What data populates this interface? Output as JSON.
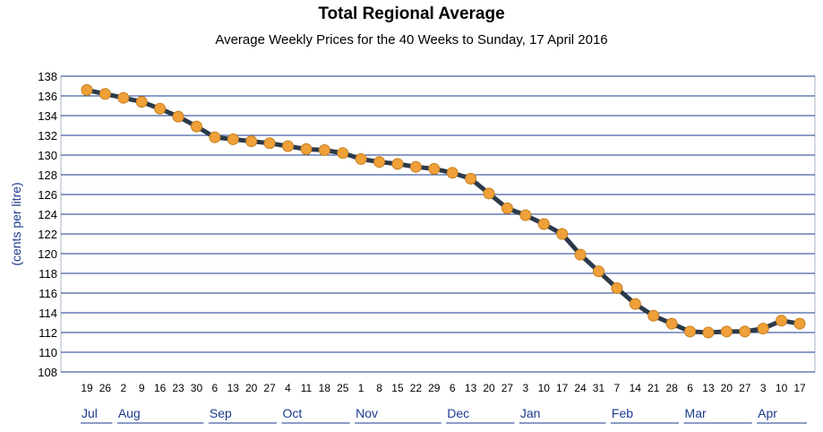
{
  "chart_data": {
    "type": "line",
    "title": "Total Regional Average",
    "subtitle": "Average Weekly Prices for the 40 Weeks to Sunday, 17 April 2016",
    "ylabel": "(cents per litre)",
    "ylim": [
      108,
      138
    ],
    "yticks": [
      108,
      110,
      112,
      114,
      116,
      118,
      120,
      122,
      124,
      126,
      128,
      130,
      132,
      134,
      136,
      138
    ],
    "grid": true,
    "x_labels": [
      "19",
      "26",
      "2",
      "9",
      "16",
      "23",
      "30",
      "6",
      "13",
      "20",
      "27",
      "4",
      "11",
      "18",
      "25",
      "1",
      "8",
      "15",
      "22",
      "29",
      "6",
      "13",
      "20",
      "27",
      "3",
      "10",
      "17",
      "24",
      "31",
      "7",
      "14",
      "21",
      "28",
      "6",
      "13",
      "20",
      "27",
      "3",
      "10",
      "17"
    ],
    "months": [
      {
        "label": "Jul",
        "start": 0,
        "end": 1
      },
      {
        "label": "Aug",
        "start": 2,
        "end": 6
      },
      {
        "label": "Sep",
        "start": 7,
        "end": 10
      },
      {
        "label": "Oct",
        "start": 11,
        "end": 14
      },
      {
        "label": "Nov",
        "start": 15,
        "end": 19
      },
      {
        "label": "Dec",
        "start": 20,
        "end": 23
      },
      {
        "label": "Jan",
        "start": 24,
        "end": 28
      },
      {
        "label": "Feb",
        "start": 29,
        "end": 32
      },
      {
        "label": "Mar",
        "start": 33,
        "end": 36
      },
      {
        "label": "Apr",
        "start": 37,
        "end": 39
      }
    ],
    "values": [
      136.6,
      136.2,
      135.8,
      135.4,
      134.7,
      133.9,
      132.9,
      131.8,
      131.6,
      131.4,
      131.2,
      130.9,
      130.6,
      130.5,
      130.2,
      129.6,
      129.3,
      129.1,
      128.8,
      128.6,
      128.2,
      127.6,
      126.1,
      124.6,
      123.9,
      123.0,
      122.0,
      119.9,
      118.2,
      116.5,
      114.9,
      113.7,
      112.9,
      112.1,
      112.0,
      112.1,
      112.1,
      112.4,
      113.2,
      112.9
    ],
    "colors": {
      "line": "#2b3a4a",
      "marker": "#f0a038",
      "grid": "#1a3a8c",
      "axis_text": "#1a3a8c"
    }
  }
}
